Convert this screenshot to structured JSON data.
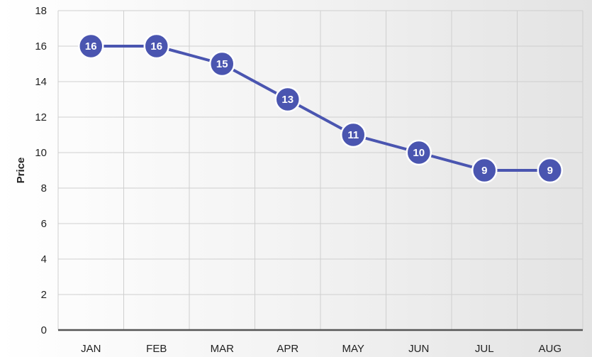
{
  "chart_data": {
    "type": "line",
    "categories": [
      "JAN",
      "FEB",
      "MAR",
      "APR",
      "MAY",
      "JUN",
      "JUL",
      "AUG"
    ],
    "series": [
      {
        "values": [
          16,
          16,
          15,
          13,
          11,
          10,
          9,
          9
        ]
      }
    ],
    "ylabel": "Price",
    "ylim": [
      0,
      18
    ],
    "yticks": [
      "0",
      "2",
      "4",
      "6",
      "8",
      "10",
      "12",
      "14",
      "16",
      "18"
    ],
    "grid": true,
    "data_labels": true,
    "line_color": "#4a55b0",
    "marker_color": "#4a55b0"
  }
}
